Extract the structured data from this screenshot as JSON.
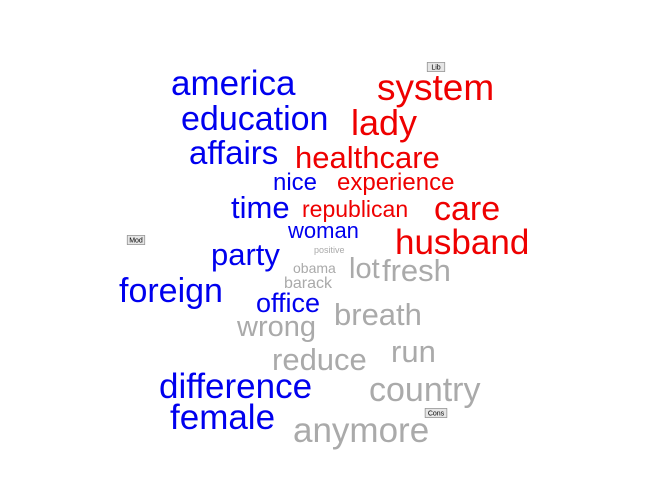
{
  "chart_data": {
    "type": "wordcloud",
    "colors": {
      "blue": "#0000ee",
      "red": "#ee0000",
      "grey": "#aaaaaa"
    },
    "poles": [
      {
        "label": "Lib"
      },
      {
        "label": "Mod"
      },
      {
        "label": "Cons"
      }
    ],
    "words": [
      {
        "text": "america",
        "group": "blue",
        "weight": 35
      },
      {
        "text": "education",
        "group": "blue",
        "weight": 34
      },
      {
        "text": "affairs",
        "group": "blue",
        "weight": 33
      },
      {
        "text": "nice",
        "group": "blue",
        "weight": 24
      },
      {
        "text": "time",
        "group": "blue",
        "weight": 31
      },
      {
        "text": "woman",
        "group": "blue",
        "weight": 22
      },
      {
        "text": "party",
        "group": "blue",
        "weight": 31
      },
      {
        "text": "foreign",
        "group": "blue",
        "weight": 34
      },
      {
        "text": "office",
        "group": "blue",
        "weight": 27
      },
      {
        "text": "difference",
        "group": "blue",
        "weight": 35
      },
      {
        "text": "female",
        "group": "blue",
        "weight": 35
      },
      {
        "text": "system",
        "group": "red",
        "weight": 37
      },
      {
        "text": "lady",
        "group": "red",
        "weight": 36
      },
      {
        "text": "healthcare",
        "group": "red",
        "weight": 31
      },
      {
        "text": "experience",
        "group": "red",
        "weight": 24
      },
      {
        "text": "republican",
        "group": "red",
        "weight": 23
      },
      {
        "text": "care",
        "group": "red",
        "weight": 34
      },
      {
        "text": "husband",
        "group": "red",
        "weight": 35
      },
      {
        "text": "positive",
        "group": "grey",
        "weight": 9
      },
      {
        "text": "obama",
        "group": "grey",
        "weight": 14
      },
      {
        "text": "lot",
        "group": "grey",
        "weight": 29
      },
      {
        "text": "fresh",
        "group": "grey",
        "weight": 31
      },
      {
        "text": "barack",
        "group": "grey",
        "weight": 16
      },
      {
        "text": "wrong",
        "group": "grey",
        "weight": 29
      },
      {
        "text": "breath",
        "group": "grey",
        "weight": 31
      },
      {
        "text": "run",
        "group": "grey",
        "weight": 31
      },
      {
        "text": "reduce",
        "group": "grey",
        "weight": 31
      },
      {
        "text": "country",
        "group": "grey",
        "weight": 34
      },
      {
        "text": "anymore",
        "group": "grey",
        "weight": 35
      }
    ]
  }
}
